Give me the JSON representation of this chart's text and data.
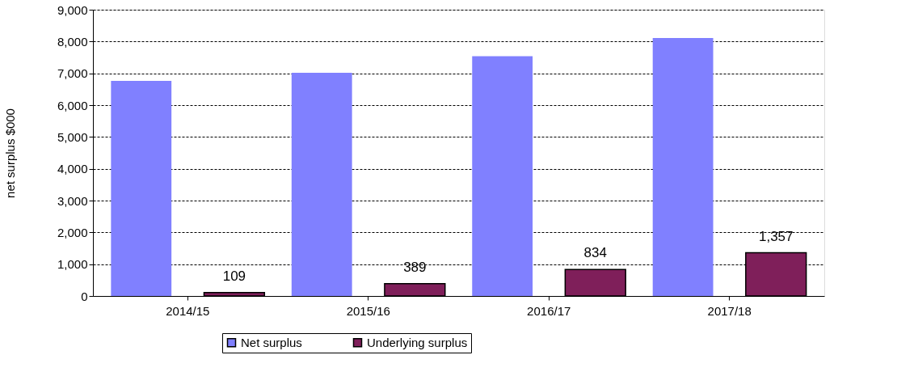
{
  "chart_data": {
    "type": "bar",
    "ylabel": "net surplus $000",
    "categories": [
      "2014/15",
      "2015/16",
      "2016/17",
      "2017/18"
    ],
    "series": [
      {
        "name": "Net surplus",
        "color": "#8080ff",
        "values": [
          6760,
          7020,
          7540,
          8110
        ]
      },
      {
        "name": "Underlying surplus",
        "color": "#7f1f5a",
        "values": [
          109,
          389,
          834,
          1357
        ],
        "value_labels": [
          "109",
          "389",
          "834",
          "1,357"
        ]
      }
    ],
    "ylim": [
      0,
      9000
    ],
    "yticks": [
      {
        "value": 0,
        "label": "0"
      },
      {
        "value": 1000,
        "label": "1,000"
      },
      {
        "value": 2000,
        "label": "2,000"
      },
      {
        "value": 3000,
        "label": "3,000"
      },
      {
        "value": 4000,
        "label": "4,000"
      },
      {
        "value": 5000,
        "label": "5,000"
      },
      {
        "value": 6000,
        "label": "6,000"
      },
      {
        "value": 7000,
        "label": "7,000"
      },
      {
        "value": 8000,
        "label": "8,000"
      },
      {
        "value": 9000,
        "label": "9,000"
      }
    ],
    "grid": "y",
    "legend": "bottom"
  }
}
